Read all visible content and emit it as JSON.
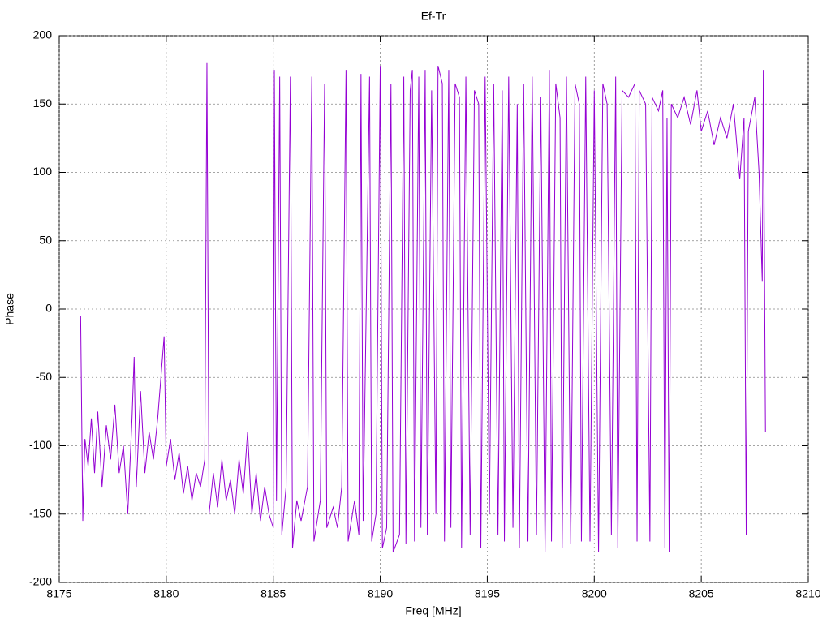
{
  "chart_data": {
    "type": "line",
    "title": "Ef-Tr",
    "xlabel": "Freq [MHz]",
    "ylabel": "Phase",
    "color": "#9400d3",
    "grid": true,
    "xlim": [
      8175,
      8210
    ],
    "xticks": [
      8175,
      8180,
      8185,
      8190,
      8195,
      8200,
      8205,
      8210
    ],
    "ylim": [
      -200,
      200
    ],
    "yticks": [
      -200,
      -150,
      -100,
      -50,
      0,
      50,
      100,
      150,
      200
    ],
    "x": [
      8176.0,
      8176.1,
      8176.2,
      8176.35,
      8176.5,
      8176.65,
      8176.8,
      8177.0,
      8177.2,
      8177.4,
      8177.6,
      8177.8,
      8178.0,
      8178.2,
      8178.4,
      8178.5,
      8178.6,
      8178.8,
      8179.0,
      8179.2,
      8179.4,
      8179.6,
      8179.9,
      8180.0,
      8180.2,
      8180.4,
      8180.6,
      8180.8,
      8181.0,
      8181.2,
      8181.4,
      8181.6,
      8181.8,
      8181.9,
      8182.0,
      8182.2,
      8182.4,
      8182.6,
      8182.8,
      8183.0,
      8183.2,
      8183.4,
      8183.6,
      8183.8,
      8184.0,
      8184.2,
      8184.4,
      8184.6,
      8184.8,
      8185.0,
      8185.05,
      8185.15,
      8185.3,
      8185.4,
      8185.6,
      8185.8,
      8185.9,
      8186.1,
      8186.3,
      8186.6,
      8186.8,
      8186.9,
      8187.2,
      8187.4,
      8187.5,
      8187.8,
      8188.0,
      8188.2,
      8188.4,
      8188.5,
      8188.8,
      8189.0,
      8189.1,
      8189.2,
      8189.5,
      8189.6,
      8189.8,
      8190.0,
      8190.1,
      8190.3,
      8190.5,
      8190.6,
      8190.9,
      8191.1,
      8191.2,
      8191.4,
      8191.5,
      8191.6,
      8191.8,
      8191.9,
      8192.1,
      8192.2,
      8192.4,
      8192.6,
      8192.7,
      8192.9,
      8193.0,
      8193.2,
      8193.3,
      8193.5,
      8193.7,
      8193.8,
      8194.0,
      8194.2,
      8194.4,
      8194.6,
      8194.7,
      8194.9,
      8195.1,
      8195.3,
      8195.5,
      8195.7,
      8195.8,
      8196.0,
      8196.2,
      8196.4,
      8196.5,
      8196.7,
      8196.9,
      8197.1,
      8197.3,
      8197.5,
      8197.7,
      8197.9,
      8198.0,
      8198.2,
      8198.4,
      8198.5,
      8198.7,
      8198.9,
      8199.1,
      8199.3,
      8199.4,
      8199.6,
      8199.8,
      8200.0,
      8200.2,
      8200.4,
      8200.6,
      8200.8,
      8201.0,
      8201.1,
      8201.3,
      8201.6,
      8201.9,
      8202.0,
      8202.1,
      8202.4,
      8202.6,
      8202.7,
      8203.0,
      8203.2,
      8203.3,
      8203.4,
      8203.5,
      8203.6,
      8203.9,
      8204.2,
      8204.5,
      8204.8,
      8205.0,
      8205.3,
      8205.6,
      8205.9,
      8206.2,
      8206.5,
      8206.8,
      8207.0,
      8207.1,
      8207.2,
      8207.5,
      8207.7,
      8207.85,
      8207.9,
      8208.0
    ],
    "values": [
      -5,
      -155,
      -95,
      -115,
      -80,
      -120,
      -75,
      -130,
      -85,
      -110,
      -70,
      -120,
      -100,
      -150,
      -80,
      -35,
      -130,
      -60,
      -120,
      -90,
      -110,
      -80,
      -20,
      -115,
      -95,
      -125,
      -105,
      -135,
      -115,
      -140,
      -120,
      -130,
      -110,
      180,
      -150,
      -120,
      -145,
      -110,
      -140,
      -125,
      -150,
      -110,
      -135,
      -90,
      -150,
      -120,
      -155,
      -130,
      -150,
      -160,
      175,
      -140,
      170,
      -165,
      -130,
      170,
      -175,
      -140,
      -155,
      -130,
      170,
      -170,
      -140,
      165,
      -160,
      -145,
      -160,
      -130,
      175,
      -170,
      -140,
      -165,
      172,
      -155,
      170,
      -170,
      -150,
      178,
      -175,
      -160,
      165,
      -178,
      -165,
      170,
      -172,
      160,
      175,
      -170,
      170,
      -160,
      175,
      -165,
      160,
      -150,
      178,
      165,
      -170,
      175,
      -160,
      165,
      155,
      -175,
      170,
      -165,
      160,
      150,
      -175,
      170,
      -150,
      165,
      -165,
      160,
      -170,
      170,
      -160,
      150,
      -175,
      165,
      -170,
      170,
      -165,
      155,
      -178,
      175,
      -170,
      165,
      140,
      -175,
      170,
      -172,
      165,
      150,
      -170,
      170,
      -170,
      160,
      -178,
      165,
      150,
      -165,
      170,
      -175,
      160,
      155,
      165,
      -170,
      160,
      150,
      -170,
      155,
      145,
      160,
      -175,
      140,
      -178,
      150,
      140,
      155,
      135,
      160,
      130,
      145,
      120,
      140,
      125,
      150,
      95,
      140,
      -165,
      130,
      155,
      100,
      20,
      175,
      -90
    ]
  }
}
